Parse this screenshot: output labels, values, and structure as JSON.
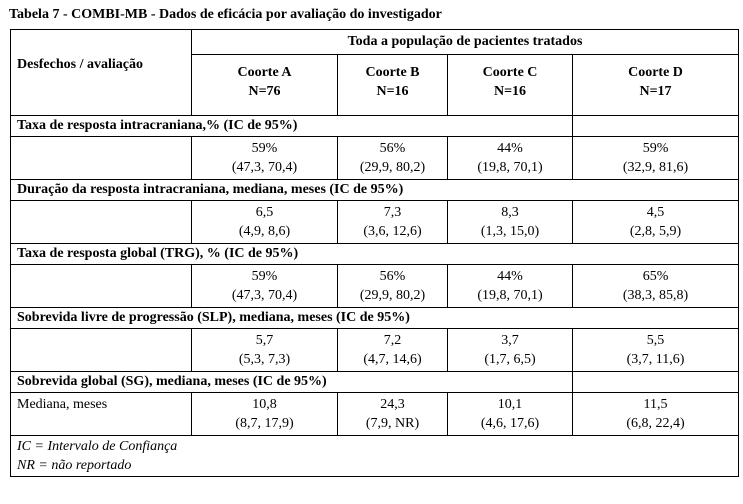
{
  "caption": "Tabela 7 -  COMBI-MB - Dados de eficácia por avaliação do investigador",
  "header": {
    "span_label": "Toda a população de pacientes tratados",
    "outcome_label": "Desfechos / avaliação",
    "cohorts": [
      {
        "name": "Coorte A",
        "n": "N=76"
      },
      {
        "name": "Coorte B",
        "n": "N=16"
      },
      {
        "name": "Coorte C",
        "n": "N=16"
      },
      {
        "name": "Coorte D",
        "n": "N=17"
      }
    ]
  },
  "sections": [
    {
      "title": "Taxa de resposta intracraniana,% (IC de 95%)",
      "row_label": "",
      "values": [
        {
          "main": "59%",
          "ci": "(47,3, 70,4)"
        },
        {
          "main": "56%",
          "ci": "(29,9, 80,2)"
        },
        {
          "main": "44%",
          "ci": "(19,8, 70,1)"
        },
        {
          "main": "59%",
          "ci": "(32,9, 81,6)"
        }
      ]
    },
    {
      "title": "Duração da resposta intracraniana, mediana, meses (IC de 95%)",
      "row_label": "",
      "values": [
        {
          "main": "6,5",
          "ci": "(4,9, 8,6)"
        },
        {
          "main": "7,3",
          "ci": "(3,6, 12,6)"
        },
        {
          "main": "8,3",
          "ci": "(1,3, 15,0)"
        },
        {
          "main": "4,5",
          "ci": "(2,8, 5,9)"
        }
      ]
    },
    {
      "title": "Taxa de resposta global (TRG), % (IC de 95%)",
      "row_label": "",
      "values": [
        {
          "main": "59%",
          "ci": "(47,3, 70,4)"
        },
        {
          "main": "56%",
          "ci": "(29,9, 80,2)"
        },
        {
          "main": "44%",
          "ci": "(19,8, 70,1)"
        },
        {
          "main": "65%",
          "ci": "(38,3, 85,8)"
        }
      ]
    },
    {
      "title": "Sobrevida livre de progressão (SLP), mediana, meses (IC de 95%)",
      "row_label": "",
      "values": [
        {
          "main": "5,7",
          "ci": "(5,3, 7,3)"
        },
        {
          "main": "7,2",
          "ci": "(4,7, 14,6)"
        },
        {
          "main": "3,7",
          "ci": "(1,7, 6,5)"
        },
        {
          "main": "5,5",
          "ci": "(3,7, 11,6)"
        }
      ]
    },
    {
      "title": "Sobrevida global (SG), mediana, meses (IC de 95%)",
      "row_label": "Mediana, meses",
      "values": [
        {
          "main": "10,8",
          "ci": "(8,7, 17,9)"
        },
        {
          "main": "24,3",
          "ci": "(7,9, NR)"
        },
        {
          "main": "10,1",
          "ci": "(4,6, 17,6)"
        },
        {
          "main": "11,5",
          "ci": "(6,8, 22,4)"
        }
      ]
    }
  ],
  "footnotes": [
    "IC = Intervalo de Confiança",
    "NR = não reportado"
  ]
}
